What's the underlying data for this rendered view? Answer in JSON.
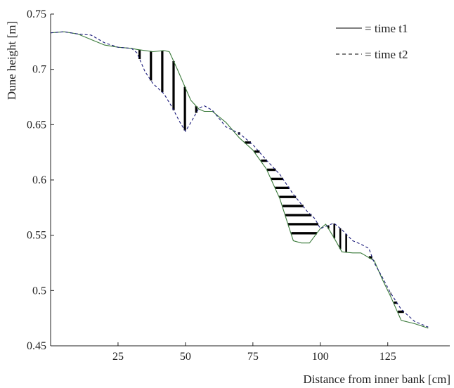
{
  "chart_data": {
    "type": "line",
    "title": "",
    "xlabel": "Distance from inner bank [cm]",
    "ylabel": "Dune height [m]",
    "xlim": [
      0,
      148
    ],
    "ylim": [
      0.45,
      0.75
    ],
    "x_ticks": [
      25,
      50,
      75,
      100,
      125
    ],
    "x_tick_labels": [
      "25",
      "50",
      "75",
      "100",
      "125"
    ],
    "y_ticks": [
      0.45,
      0.5,
      0.55,
      0.6,
      0.65,
      0.7,
      0.75
    ],
    "y_tick_labels": [
      "0.45",
      "0.5",
      "0.55",
      "0.6",
      "0.65",
      "0.7",
      "0.75"
    ],
    "grid": false,
    "legend_position": "top-right",
    "legend": [
      {
        "symbol": "solid",
        "text": "= time t1"
      },
      {
        "symbol": "dashed",
        "text": "= time t2"
      }
    ],
    "series": [
      {
        "name": "time t1",
        "style": "solid",
        "color": "#3a7a3a",
        "x": [
          0,
          5,
          10,
          15,
          20,
          25,
          30,
          32,
          35,
          38,
          42,
          44,
          47,
          50,
          52,
          55,
          57,
          60,
          65,
          70,
          75,
          80,
          85,
          88,
          90,
          93,
          96,
          100,
          102,
          105,
          108,
          112,
          115,
          120,
          123,
          126,
          130,
          135,
          140
        ],
        "y": [
          0.733,
          0.734,
          0.732,
          0.727,
          0.722,
          0.72,
          0.719,
          0.718,
          0.717,
          0.716,
          0.717,
          0.716,
          0.7,
          0.683,
          0.672,
          0.664,
          0.662,
          0.662,
          0.652,
          0.638,
          0.627,
          0.61,
          0.583,
          0.56,
          0.545,
          0.543,
          0.543,
          0.556,
          0.56,
          0.548,
          0.535,
          0.534,
          0.534,
          0.527,
          0.51,
          0.495,
          0.473,
          0.47,
          0.466
        ]
      },
      {
        "name": "time t2",
        "style": "dashed",
        "color": "#1a1a7a",
        "x": [
          0,
          5,
          10,
          15,
          20,
          25,
          30,
          32,
          35,
          38,
          42,
          45,
          48,
          50,
          52,
          55,
          57,
          60,
          65,
          70,
          75,
          80,
          85,
          90,
          95,
          98,
          100,
          102,
          105,
          108,
          112,
          115,
          118,
          120,
          123,
          126,
          130,
          135,
          140
        ],
        "y": [
          0.733,
          0.734,
          0.732,
          0.731,
          0.724,
          0.72,
          0.719,
          0.715,
          0.698,
          0.687,
          0.678,
          0.666,
          0.652,
          0.644,
          0.652,
          0.665,
          0.667,
          0.663,
          0.648,
          0.642,
          0.632,
          0.618,
          0.605,
          0.587,
          0.572,
          0.565,
          0.556,
          0.558,
          0.561,
          0.555,
          0.545,
          0.542,
          0.538,
          0.525,
          0.512,
          0.498,
          0.483,
          0.472,
          0.467
        ]
      }
    ]
  }
}
